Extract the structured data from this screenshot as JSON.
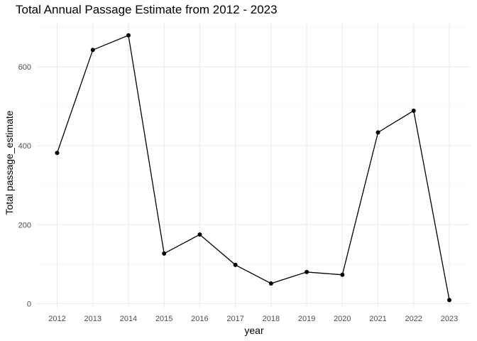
{
  "chart_data": {
    "type": "line",
    "title": "Total Annual Passage Estimate from 2012 - 2023",
    "xlabel": "year",
    "ylabel": "Total passage_estimate",
    "x": [
      "2012",
      "2013",
      "2014",
      "2015",
      "2016",
      "2017",
      "2018",
      "2019",
      "2020",
      "2021",
      "2022",
      "2023"
    ],
    "series": [
      {
        "values": [
          382,
          643,
          680,
          127,
          175,
          98,
          51,
          80,
          73,
          434,
          489,
          9
        ]
      }
    ],
    "yticks": [
      0,
      200,
      400,
      600
    ],
    "ylim": [
      -12,
      712
    ],
    "grid": true,
    "legend": "none",
    "colors": {
      "line": "#000000",
      "point": "#000000",
      "grid_major": "#ebebeb",
      "grid_minor": "#f5f5f5"
    }
  }
}
